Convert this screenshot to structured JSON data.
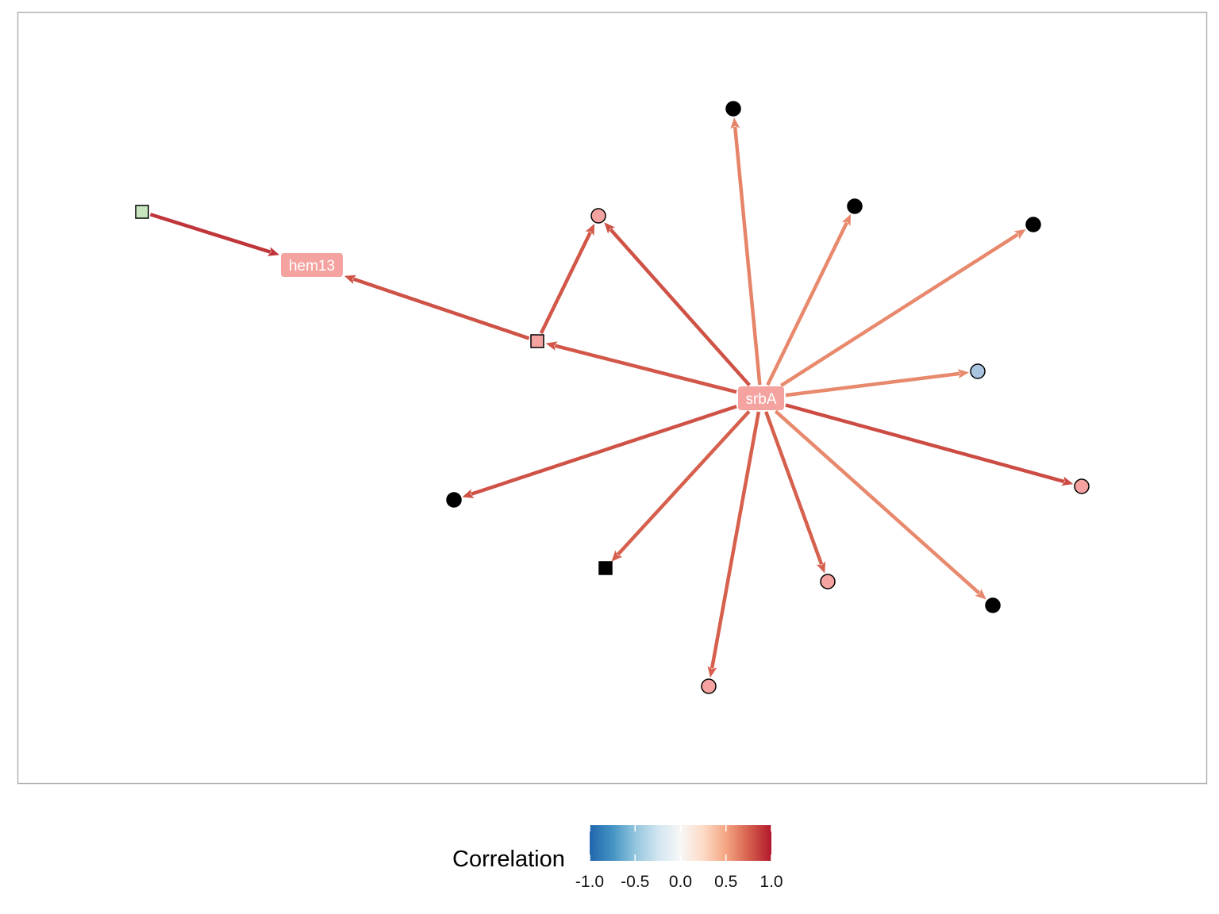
{
  "graph": {
    "nodes": [
      {
        "id": "srbA",
        "label": "srbA",
        "shape": "label",
        "fill": "#f4a3a0"
      },
      {
        "id": "hem13",
        "label": "hem13",
        "shape": "label",
        "fill": "#f4a3a0"
      },
      {
        "id": "sq_green",
        "label": "",
        "shape": "square",
        "fill": "#c7e6bf"
      },
      {
        "id": "sq_pink",
        "label": "",
        "shape": "square",
        "fill": "#f4a3a0"
      },
      {
        "id": "sq_black",
        "label": "",
        "shape": "square",
        "fill": "#000000"
      },
      {
        "id": "c_pink_top",
        "label": "",
        "shape": "circle",
        "fill": "#f4a3a0"
      },
      {
        "id": "c_black_top",
        "label": "",
        "shape": "circle",
        "fill": "#000000"
      },
      {
        "id": "c_black_ur1",
        "label": "",
        "shape": "circle",
        "fill": "#000000"
      },
      {
        "id": "c_black_ur2",
        "label": "",
        "shape": "circle",
        "fill": "#000000"
      },
      {
        "id": "c_blue",
        "label": "",
        "shape": "circle",
        "fill": "#a9c4e0"
      },
      {
        "id": "c_pink_right",
        "label": "",
        "shape": "circle",
        "fill": "#f4a3a0"
      },
      {
        "id": "c_black_lr",
        "label": "",
        "shape": "circle",
        "fill": "#000000"
      },
      {
        "id": "c_pink_bot1",
        "label": "",
        "shape": "circle",
        "fill": "#f4a3a0"
      },
      {
        "id": "c_pink_bot2",
        "label": "",
        "shape": "circle",
        "fill": "#f4a3a0"
      },
      {
        "id": "c_black_left",
        "label": "",
        "shape": "circle",
        "fill": "#000000"
      }
    ],
    "edges": [
      {
        "from": "sq_green",
        "to": "hem13",
        "correlation": 0.9
      },
      {
        "from": "sq_pink",
        "to": "hem13",
        "correlation": 0.8
      },
      {
        "from": "sq_pink",
        "to": "c_pink_top",
        "correlation": 0.78
      },
      {
        "from": "srbA",
        "to": "sq_pink",
        "correlation": 0.78
      },
      {
        "from": "srbA",
        "to": "c_pink_top",
        "correlation": 0.8
      },
      {
        "from": "srbA",
        "to": "c_black_top",
        "correlation": 0.62
      },
      {
        "from": "srbA",
        "to": "c_black_ur1",
        "correlation": 0.6
      },
      {
        "from": "srbA",
        "to": "c_black_ur2",
        "correlation": 0.6
      },
      {
        "from": "srbA",
        "to": "c_blue",
        "correlation": 0.6
      },
      {
        "from": "srbA",
        "to": "c_pink_right",
        "correlation": 0.82
      },
      {
        "from": "srbA",
        "to": "c_black_lr",
        "correlation": 0.6
      },
      {
        "from": "srbA",
        "to": "c_pink_bot1",
        "correlation": 0.75
      },
      {
        "from": "srbA",
        "to": "c_pink_bot2",
        "correlation": 0.75
      },
      {
        "from": "srbA",
        "to": "sq_black",
        "correlation": 0.75
      },
      {
        "from": "srbA",
        "to": "c_black_left",
        "correlation": 0.8
      }
    ]
  },
  "legend": {
    "title": "Correlation",
    "ticks": [
      "-1.0",
      "-0.5",
      "0.0",
      "0.5",
      "1.0"
    ],
    "tick_values": [
      -1.0,
      -0.5,
      0.0,
      0.5,
      1.0
    ],
    "gradient_colors": [
      "#2166ac",
      "#4393c3",
      "#92c5de",
      "#d1e5f0",
      "#f7f7f7",
      "#fddbc7",
      "#f4a582",
      "#d6604d",
      "#b2182b"
    ]
  },
  "colors": {
    "panel_border": "#b3b3b3",
    "node_outline": "#000000"
  }
}
